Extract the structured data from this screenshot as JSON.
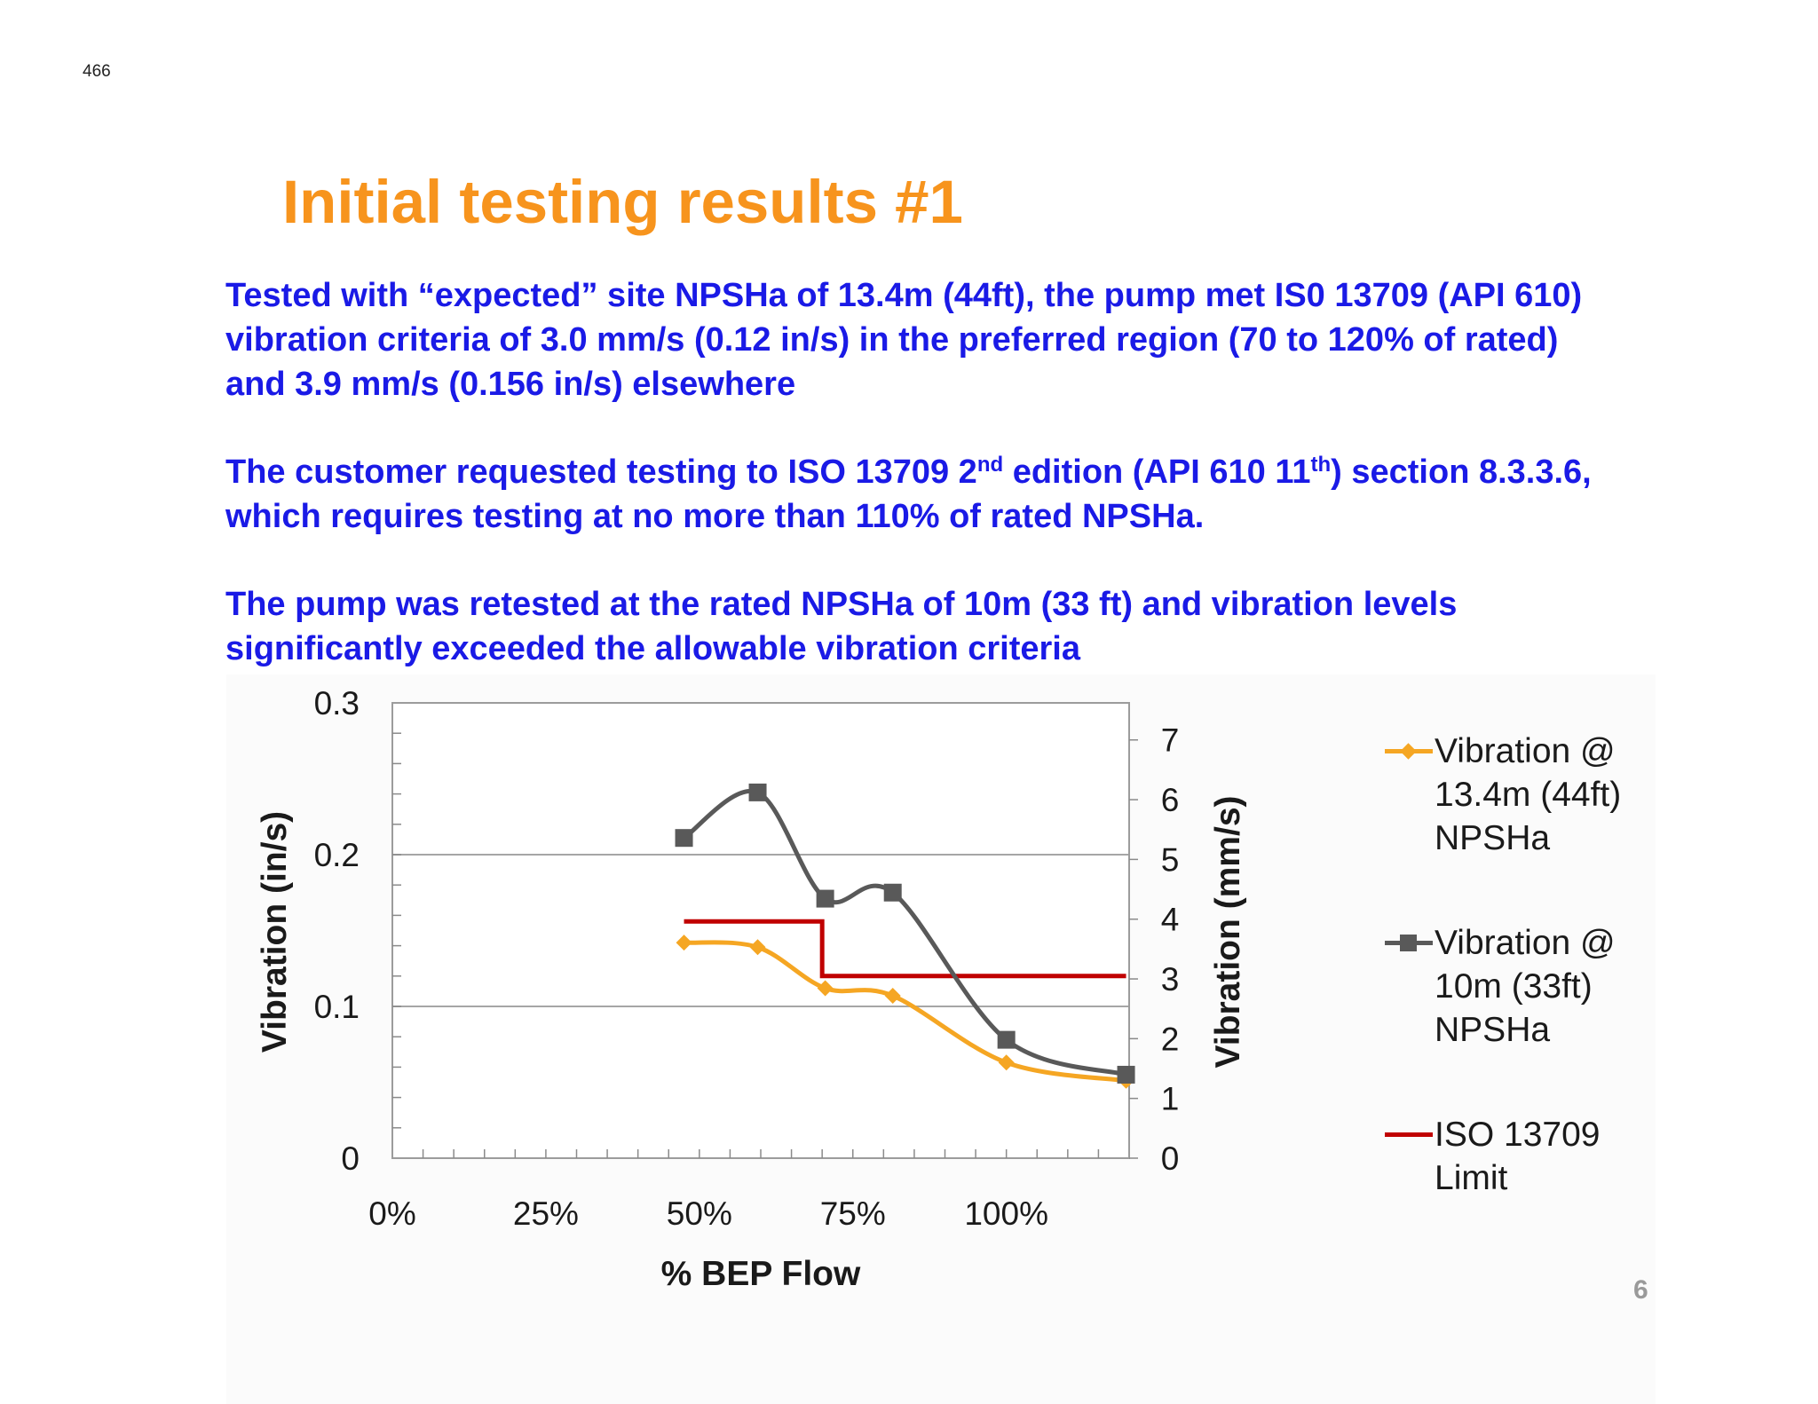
{
  "page": {
    "page_number": "466",
    "slide_number": "6"
  },
  "title": "Initial testing results #1",
  "paragraphs": {
    "p1": "Tested with “expected” site NPSHa of 13.4m (44ft), the pump met IS0 13709 (API 610) vibration criteria of 3.0 mm/s (0.12 in/s) in the preferred region (70 to 120% of rated) and 3.9 mm/s (0.156 in/s) elsewhere",
    "p2": {
      "a": "The customer requested testing to ISO 13709 2",
      "a_sup": "nd",
      "b": " edition  (API 610 11",
      "b_sup": "th",
      "c": ") section 8.3.3.6, which requires testing at no more than 110% of rated NPSHa."
    },
    "p3": "The pump was retested at the rated NPSHa of 10m (33 ft) and vibration levels significantly exceeded the allowable vibration criteria"
  },
  "colors": {
    "title": "#f7941d",
    "body_text": "#1a1ae6",
    "series_13_4m": "#f5a623",
    "series_10m": "#595959",
    "iso_limit": "#c00000"
  },
  "chart_data": {
    "type": "line",
    "xlabel": "% BEP Flow",
    "ylabel_left": "Vibration (in/s)",
    "ylabel_right": "Vibration (mm/s)",
    "xlim": [
      0,
      1.2
    ],
    "ylim_left": [
      0,
      0.3
    ],
    "ylim_right": [
      0,
      7.62
    ],
    "x_ticks": [
      "0%",
      "25%",
      "50%",
      "75%",
      "100%"
    ],
    "x_tick_values": [
      0,
      0.25,
      0.5,
      0.75,
      1.0
    ],
    "y_ticks_left": [
      "0",
      "0.1",
      "0.2",
      "0.3"
    ],
    "y_tick_values_left": [
      0,
      0.1,
      0.2,
      0.3
    ],
    "y_ticks_right": [
      "0",
      "1",
      "2",
      "3",
      "4",
      "5",
      "6",
      "7"
    ],
    "y_tick_values_right": [
      0,
      1,
      2,
      3,
      4,
      5,
      6,
      7
    ],
    "grid": "horizontal major gridlines on left axis",
    "legend_position": "right",
    "series": [
      {
        "name": "Vibration @ 13.4m (44ft) NPSHa",
        "marker": "diamond",
        "color": "#f5a623",
        "x": [
          0.475,
          0.595,
          0.705,
          0.815,
          1.0,
          1.195
        ],
        "y": [
          0.142,
          0.139,
          0.112,
          0.107,
          0.063,
          0.051
        ]
      },
      {
        "name": "Vibration @ 10m (33ft) NPSHa",
        "marker": "square",
        "color": "#595959",
        "x": [
          0.475,
          0.595,
          0.705,
          0.815,
          1.0,
          1.195
        ],
        "y": [
          0.211,
          0.241,
          0.171,
          0.175,
          0.078,
          0.055
        ]
      },
      {
        "name": "ISO 13709 Limit",
        "marker": "none",
        "color": "#c00000",
        "x": [
          0.475,
          0.7,
          0.7,
          1.195
        ],
        "y": [
          0.156,
          0.156,
          0.12,
          0.12
        ]
      }
    ]
  },
  "legend": [
    {
      "label": "Vibration @\n13.4m (44ft)\nNPSHa",
      "marker": "diamond",
      "color": "#f5a623"
    },
    {
      "label": "Vibration @\n10m (33ft)\nNPSHa",
      "marker": "square",
      "color": "#595959"
    },
    {
      "label": "ISO 13709\nLimit",
      "marker": "none",
      "color": "#c00000"
    }
  ]
}
